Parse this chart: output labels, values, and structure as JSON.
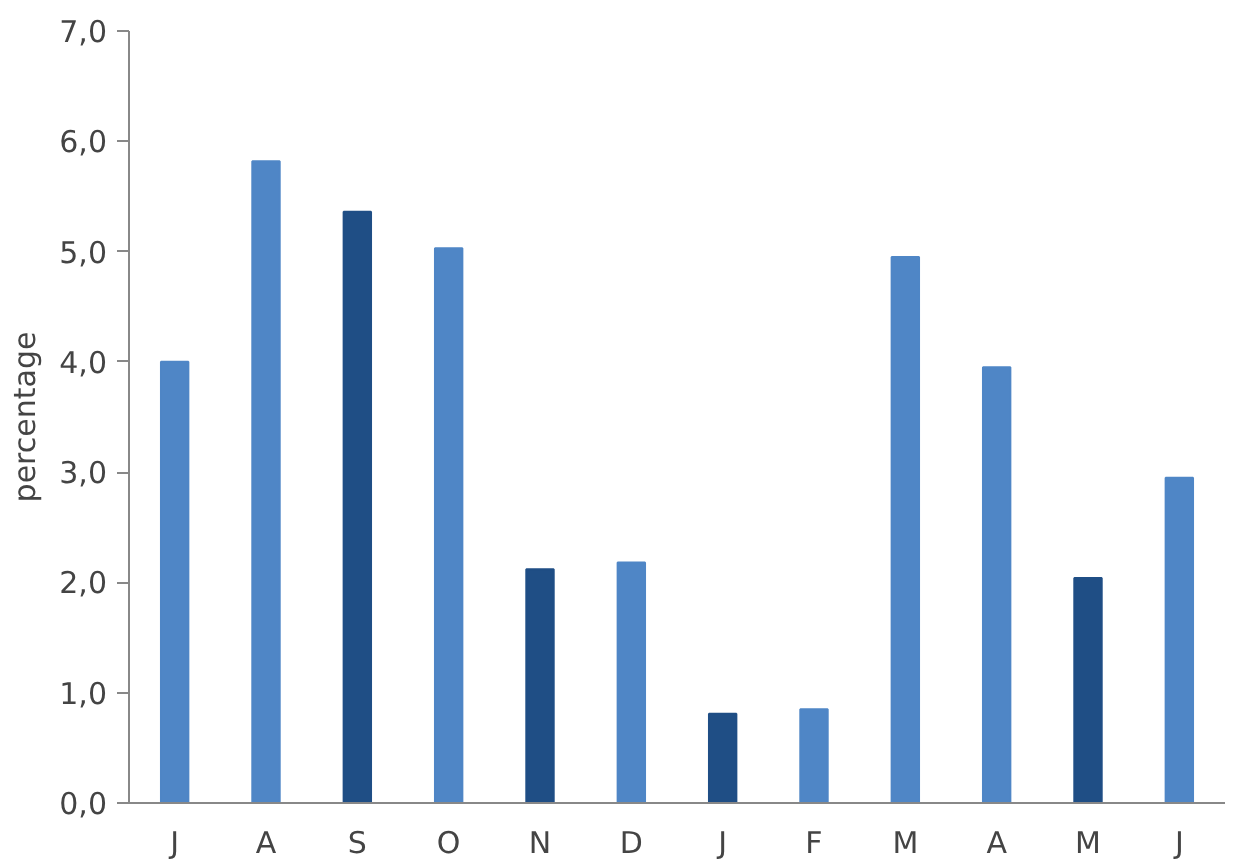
{
  "chart_data": {
    "type": "bar",
    "ylabel": "percentage",
    "categories": [
      "J",
      "A",
      "S",
      "O",
      "N",
      "D",
      "J",
      "F",
      "M",
      "A",
      "M",
      "J"
    ],
    "values": [
      4.0,
      5.82,
      5.36,
      5.03,
      2.12,
      2.18,
      0.81,
      0.85,
      4.95,
      3.95,
      2.04,
      2.95
    ],
    "colors": [
      "#4f86c6",
      "#4f86c6",
      "#1f4e85",
      "#4f86c6",
      "#1f4e85",
      "#4f86c6",
      "#1f4e85",
      "#4f86c6",
      "#4f86c6",
      "#4f86c6",
      "#1f4e85",
      "#4f86c6"
    ],
    "ylim": [
      0,
      7
    ],
    "yticks": [
      {
        "value": 0,
        "label": "0,0"
      },
      {
        "value": 1,
        "label": "1,0"
      },
      {
        "value": 2,
        "label": "2,0"
      },
      {
        "value": 3,
        "label": "3,0"
      },
      {
        "value": 4,
        "label": "4,0"
      },
      {
        "value": 5,
        "label": "5,0"
      },
      {
        "value": 6,
        "label": "6,0"
      },
      {
        "value": 7,
        "label": "7,0"
      }
    ],
    "grid": false
  }
}
